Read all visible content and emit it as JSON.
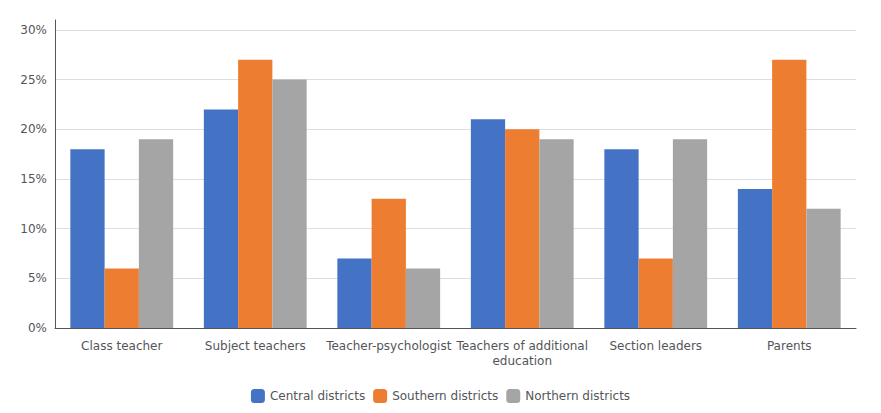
{
  "chart_data": {
    "type": "bar",
    "categories": [
      "Class teacher",
      "Subject teachers",
      "Teacher-psychologist",
      "Teachers of additional\neducation",
      "Section leaders",
      "Parents"
    ],
    "series": [
      {
        "name": "Central districts",
        "color": "#4472C4",
        "values": [
          0.18,
          0.22,
          0.07,
          0.21,
          0.18,
          0.14
        ]
      },
      {
        "name": "Southern districts",
        "color": "#ED7D31",
        "values": [
          0.06,
          0.27,
          0.13,
          0.2,
          0.07,
          0.27
        ]
      },
      {
        "name": "Northern districts",
        "color": "#A5A5A5",
        "values": [
          0.19,
          0.25,
          0.06,
          0.19,
          0.19,
          0.12
        ]
      }
    ],
    "ylim": [
      0,
      0.31
    ],
    "yticks": [
      {
        "value": 0.0,
        "label": "0%"
      },
      {
        "value": 0.05,
        "label": "5%"
      },
      {
        "value": 0.1,
        "label": "10%"
      },
      {
        "value": 0.15,
        "label": "15%"
      },
      {
        "value": 0.2,
        "label": "20%"
      },
      {
        "value": 0.25,
        "label": "25%"
      },
      {
        "value": 0.3,
        "label": "30%"
      }
    ],
    "grid": true,
    "legend": "bottom"
  }
}
